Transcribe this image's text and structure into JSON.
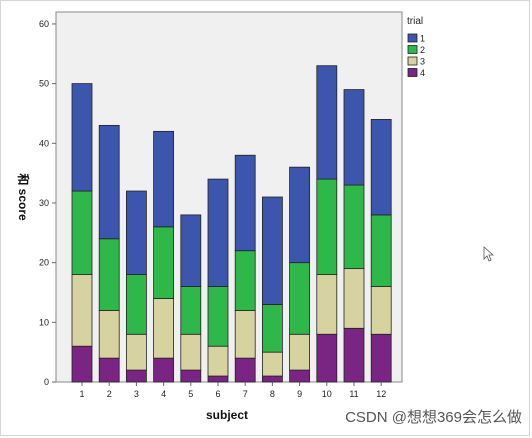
{
  "chart_data": {
    "type": "bar",
    "stacked": true,
    "categories": [
      "1",
      "2",
      "3",
      "4",
      "5",
      "6",
      "7",
      "8",
      "9",
      "10",
      "11",
      "12"
    ],
    "series": [
      {
        "name": "4",
        "values": [
          6,
          4,
          2,
          4,
          2,
          1,
          4,
          1,
          2,
          8,
          9,
          8
        ],
        "color": "#7a2583"
      },
      {
        "name": "3",
        "values": [
          12,
          8,
          6,
          10,
          6,
          5,
          8,
          4,
          6,
          10,
          10,
          8
        ],
        "color": "#d6d3a1"
      },
      {
        "name": "2",
        "values": [
          14,
          12,
          10,
          12,
          8,
          10,
          10,
          8,
          12,
          16,
          14,
          12
        ],
        "color": "#2fb84a"
      },
      {
        "name": "1",
        "values": [
          18,
          19,
          14,
          16,
          12,
          18,
          16,
          18,
          16,
          19,
          16,
          16
        ],
        "color": "#3c55ad"
      }
    ],
    "xlabel": "subject",
    "ylabel": "和 score",
    "ylim": [
      0,
      62
    ],
    "yticks": [
      0,
      10,
      20,
      30,
      40,
      50,
      60
    ],
    "legend": {
      "title": "trial",
      "placement": "right",
      "entries": [
        "1",
        "2",
        "3",
        "4"
      ]
    },
    "plot_background": "#f0f0f0",
    "grid": false
  },
  "watermark": "CSDN @想想369会怎么做",
  "icons": [
    "cursor-icon"
  ]
}
